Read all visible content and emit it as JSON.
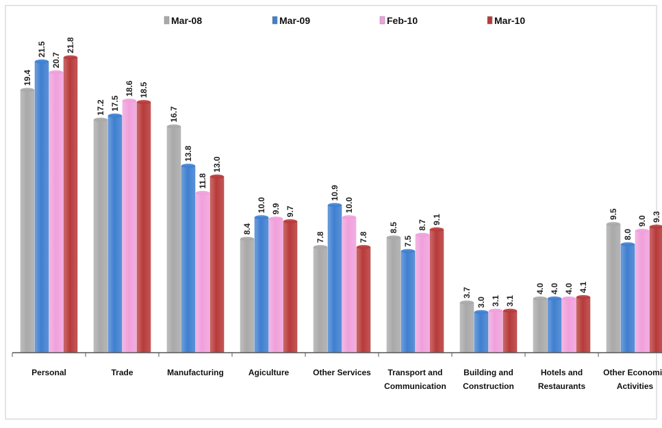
{
  "chart_data": {
    "type": "bar",
    "title": "",
    "xlabel": "",
    "ylabel": "",
    "ylim": [
      0,
      23
    ],
    "grid": false,
    "legend_position": "top",
    "categories": [
      [
        "Personal"
      ],
      [
        "Trade"
      ],
      [
        "Manufacturing"
      ],
      [
        "Agiculture"
      ],
      [
        "Other Services"
      ],
      [
        "Transport and",
        "Communication"
      ],
      [
        "Building and",
        "Construction"
      ],
      [
        "Hotels and",
        "Restaurants"
      ],
      [
        "Other Economic",
        "Activities"
      ]
    ],
    "series": [
      {
        "name": "Mar-08",
        "color": "#a9a9a9",
        "values": [
          19.4,
          17.2,
          16.7,
          8.4,
          7.8,
          8.5,
          3.7,
          4.0,
          9.5
        ]
      },
      {
        "name": "Mar-09",
        "color": "#3f7fd0",
        "values": [
          21.5,
          17.5,
          13.8,
          10.0,
          10.9,
          7.5,
          3.0,
          4.0,
          8.0
        ]
      },
      {
        "name": "Feb-10",
        "color": "#f0a0dc",
        "values": [
          20.7,
          18.6,
          11.8,
          9.9,
          10.0,
          8.7,
          3.1,
          4.0,
          9.0
        ]
      },
      {
        "name": "Mar-10",
        "color": "#b83a3a",
        "values": [
          21.8,
          18.5,
          13.0,
          9.7,
          7.8,
          9.1,
          3.1,
          4.1,
          9.3
        ]
      }
    ]
  }
}
